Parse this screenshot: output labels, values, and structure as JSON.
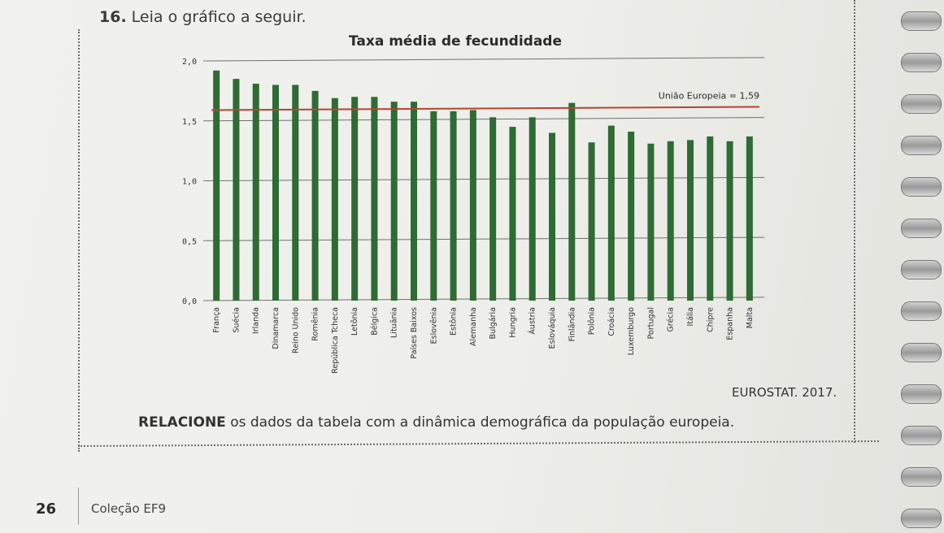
{
  "question": {
    "number": "16.",
    "text": "Leia o gráfico a seguir."
  },
  "chart_data": {
    "type": "bar",
    "title": "Taxa média de fecundidade",
    "categories": [
      "França",
      "Suécia",
      "Irlanda",
      "Dinamarca",
      "Reino Unido",
      "Romênia",
      "República Tcheca",
      "Letônia",
      "Bélgica",
      "Lituânia",
      "Países Baixos",
      "Eslovênia",
      "Estônia",
      "Alemanha",
      "Bulgária",
      "Hungria",
      "Áustria",
      "Eslováquia",
      "Finlândia",
      "Polônia",
      "Croácia",
      "Luxemburgo",
      "Portugal",
      "Grécia",
      "Itália",
      "Chipre",
      "Espanha",
      "Malta"
    ],
    "values": [
      1.92,
      1.85,
      1.81,
      1.8,
      1.8,
      1.75,
      1.69,
      1.7,
      1.7,
      1.66,
      1.66,
      1.58,
      1.58,
      1.59,
      1.53,
      1.45,
      1.53,
      1.4,
      1.65,
      1.32,
      1.46,
      1.41,
      1.31,
      1.33,
      1.34,
      1.37,
      1.33,
      1.37
    ],
    "yticks": [
      "0,0",
      "0,5",
      "1,0",
      "1,5",
      "2,0"
    ],
    "ylim": [
      0,
      2.0
    ],
    "reference_line": {
      "label": "União Europeia = 1,59",
      "value": 1.59
    },
    "colors": {
      "bar": "#2e6b35",
      "reference": "#b8442f",
      "grid": "#6f6f6f"
    }
  },
  "source": "EUROSTAT. 2017.",
  "instruction": {
    "bold": "RELACIONE",
    "rest": " os dados da tabela com a dinâmica demográfica da população europeia."
  },
  "footer": {
    "page_number": "26",
    "collection": "Coleção EF9"
  }
}
